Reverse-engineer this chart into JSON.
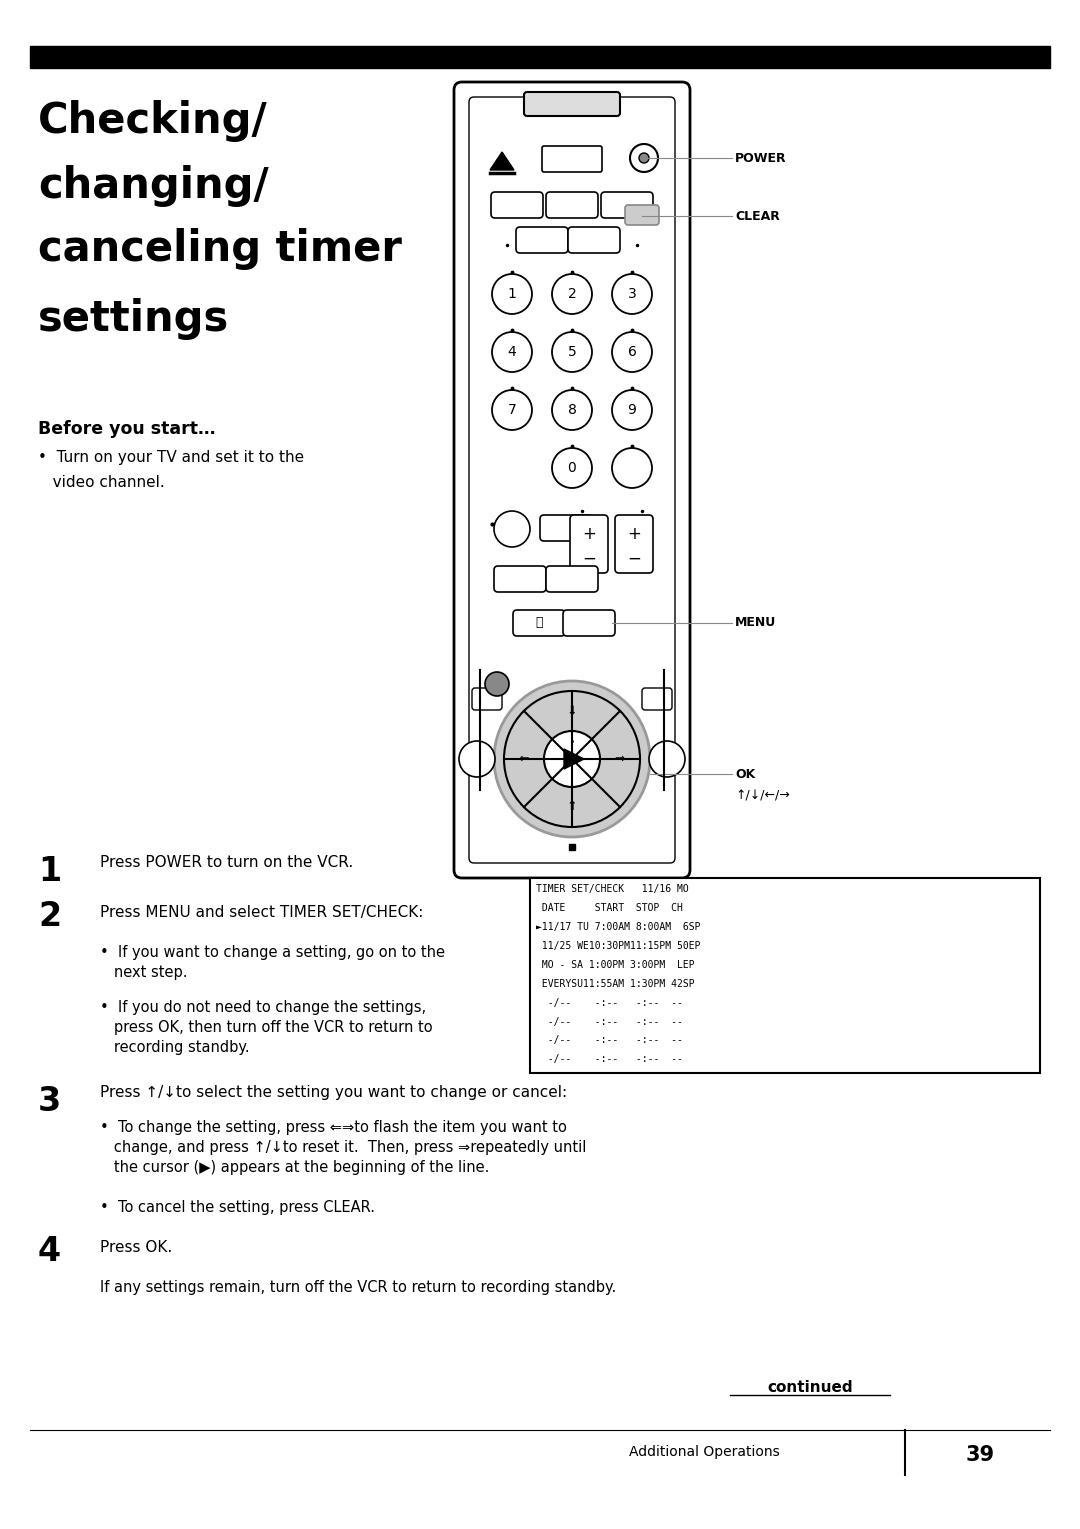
{
  "background_color": "#ffffff",
  "page_width": 10.8,
  "page_height": 15.29,
  "top_bar_color": "#000000",
  "title_lines": [
    "Checking/",
    "changing/",
    "canceling timer",
    "settings"
  ],
  "before_start_label": "Before you start…",
  "bullet1_line1": "•  Turn on your TV and set it to the",
  "bullet1_line2": "   video channel.",
  "step1_num": "1",
  "step1_text": "Press POWER to turn on the VCR.",
  "step2_num": "2",
  "step2_text": "Press MENU and select TIMER SET/CHECK:",
  "step2_b1_line1": "•  If you want to change a setting, go on to the",
  "step2_b1_line2": "   next step.",
  "step2_b2_line1": "•  If you do not need to change the settings,",
  "step2_b2_line2": "   press OK, then turn off the VCR to return to",
  "step2_b2_line3": "   recording standby.",
  "step3_num": "3",
  "step3_text": "Press ↑/↓to select the setting you want to change or cancel:",
  "step3_b1_line1": "•  To change the setting, press ⇐⇒to flash the item you want to",
  "step3_b1_line2": "   change, and press ↑/↓to reset it.  Then, press ⇒repeatedly until",
  "step3_b1_line3": "   the cursor (▶) appears at the beginning of the line.",
  "step3_b2": "•  To cancel the setting, press CLEAR.",
  "step4_num": "4",
  "step4_text": "Press OK.",
  "final_note": "If any settings remain, turn off the VCR to return to recording standby.",
  "continued_text": "continued",
  "footer_text": "Additional Operations",
  "footer_num": "39",
  "screen_lines": [
    "TIMER SET/CHECK   11/16 MO",
    " DATE     START  STOP  CH",
    "►11/17 TU 7:00AM 8:00AM  6SP",
    " 11/25 WE10:30PM11:15PM 50EP",
    " MO - SA 1:00PM 3:00PM  LEP",
    " EVERYSU11:55AM 1:30PM 42SP",
    "  -/--    -:--   -:--  --",
    "  -/--    -:--   -:--  --",
    "  -/--    -:--   -:--  --",
    "  -/--    -:--   -:--  --"
  ]
}
